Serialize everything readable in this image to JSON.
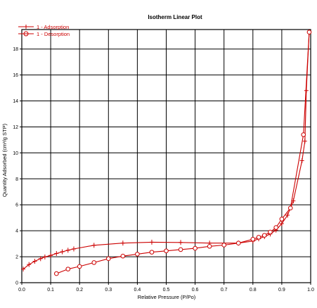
{
  "chart_data": {
    "type": "line",
    "title": "Isotherm Linear Plot",
    "xlabel": "Relative Pressure (P/Po)",
    "ylabel": "Quantity Adsorbed (cm³/g STP)",
    "xlim": [
      0,
      1.0
    ],
    "ylim": [
      0,
      19.5
    ],
    "x_ticks": [
      0.0,
      0.1,
      0.2,
      0.3,
      0.4,
      0.5,
      0.6,
      0.7,
      0.8,
      0.9,
      1.0
    ],
    "y_ticks": [
      0,
      2,
      4,
      6,
      8,
      10,
      12,
      14,
      16,
      18
    ],
    "grid": true,
    "legend_position": "top-left",
    "series": [
      {
        "name": "1 - Adsorption",
        "marker": "plus",
        "color": "#cc0000",
        "points": [
          [
            0.005,
            1.05
          ],
          [
            0.025,
            1.4
          ],
          [
            0.045,
            1.65
          ],
          [
            0.065,
            1.85
          ],
          [
            0.08,
            1.98
          ],
          [
            0.1,
            2.1
          ],
          [
            0.12,
            2.25
          ],
          [
            0.14,
            2.38
          ],
          [
            0.16,
            2.5
          ],
          [
            0.18,
            2.6
          ],
          [
            0.25,
            2.88
          ],
          [
            0.35,
            3.05
          ],
          [
            0.45,
            3.12
          ],
          [
            0.55,
            3.1
          ],
          [
            0.65,
            3.05
          ],
          [
            0.75,
            3.05
          ],
          [
            0.8,
            3.2
          ],
          [
            0.82,
            3.38
          ],
          [
            0.84,
            3.55
          ],
          [
            0.86,
            3.75
          ],
          [
            0.88,
            4.05
          ],
          [
            0.9,
            4.55
          ],
          [
            0.92,
            5.2
          ],
          [
            0.94,
            6.3
          ],
          [
            0.97,
            9.4
          ],
          [
            0.98,
            10.9
          ],
          [
            0.985,
            14.8
          ],
          [
            0.995,
            19.3
          ]
        ]
      },
      {
        "name": "1 - Desorption",
        "marker": "circle",
        "color": "#cc0000",
        "points": [
          [
            0.995,
            19.3
          ],
          [
            0.975,
            11.4
          ],
          [
            0.93,
            5.75
          ],
          [
            0.9,
            4.9
          ],
          [
            0.88,
            4.25
          ],
          [
            0.86,
            3.9
          ],
          [
            0.84,
            3.65
          ],
          [
            0.82,
            3.5
          ],
          [
            0.8,
            3.35
          ],
          [
            0.75,
            3.05
          ],
          [
            0.7,
            2.9
          ],
          [
            0.65,
            2.8
          ],
          [
            0.6,
            2.65
          ],
          [
            0.55,
            2.55
          ],
          [
            0.5,
            2.45
          ],
          [
            0.45,
            2.35
          ],
          [
            0.4,
            2.2
          ],
          [
            0.35,
            2.05
          ],
          [
            0.3,
            1.85
          ],
          [
            0.25,
            1.55
          ],
          [
            0.2,
            1.25
          ],
          [
            0.16,
            1.05
          ],
          [
            0.12,
            0.7
          ]
        ]
      }
    ]
  }
}
